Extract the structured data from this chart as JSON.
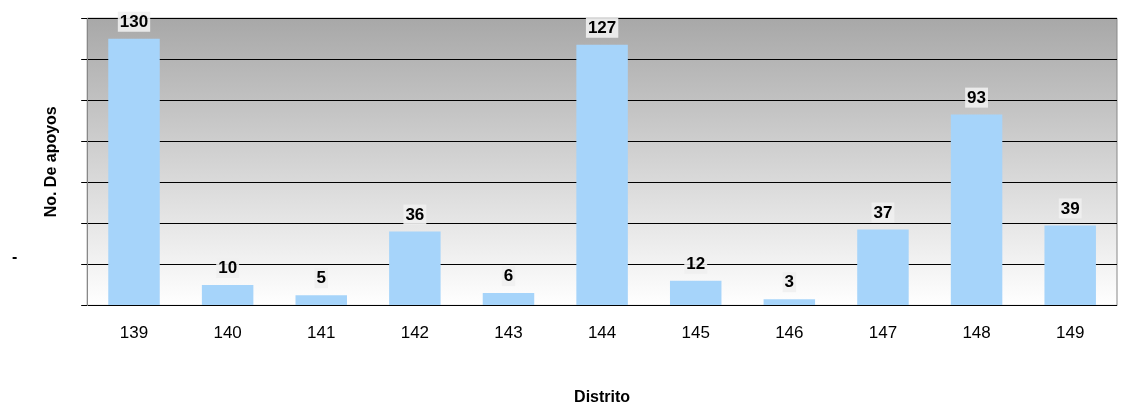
{
  "chart_data": {
    "type": "bar",
    "xlabel": "Distrito",
    "ylabel": "No. De apoyos",
    "categories": [
      "139",
      "140",
      "141",
      "142",
      "143",
      "144",
      "145",
      "146",
      "147",
      "148",
      "149"
    ],
    "values": [
      130,
      10,
      5,
      36,
      6,
      127,
      12,
      3,
      37,
      93,
      39
    ],
    "color": "#a6d4fa",
    "grid": "y",
    "data_labels": true,
    "legend": false,
    "annotations": [
      "-"
    ]
  }
}
